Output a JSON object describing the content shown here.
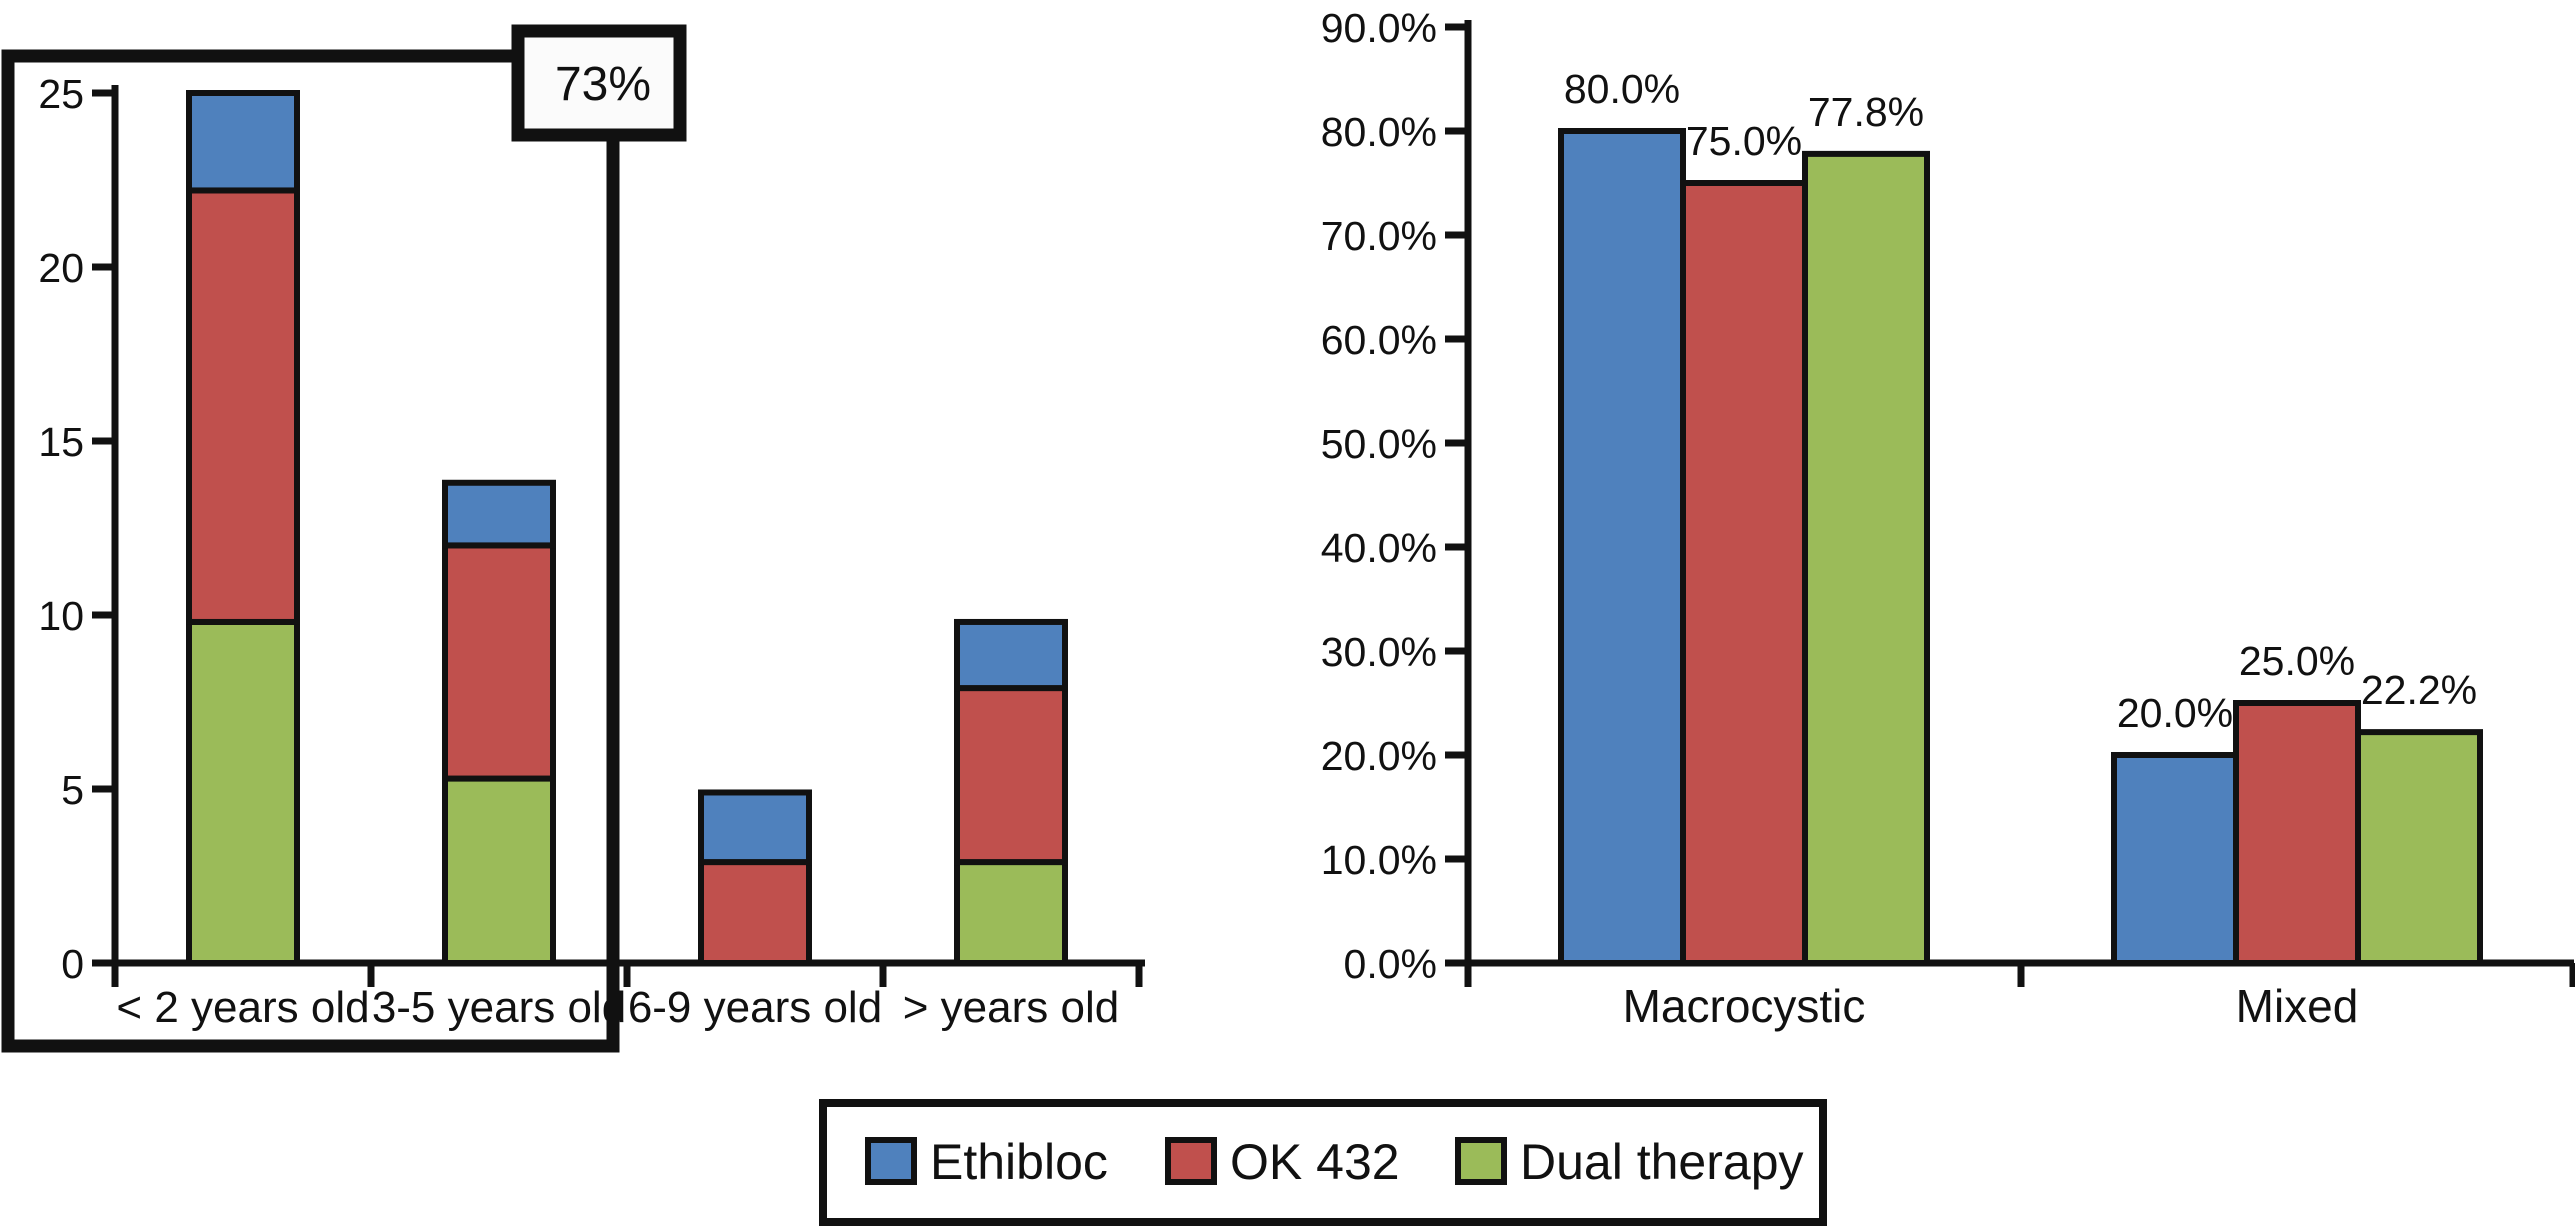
{
  "figure": {
    "description": "Two-panel bar chart comparing sclerotherapy treatments (Ethibloc, OK 432, dual therapy) by patient age group and by lesion type",
    "background": "#FFFFFF"
  },
  "colors": {
    "ethibloc": "#4F81BD",
    "ok432": "#C0504D",
    "dual_therapy": "#9BBB59",
    "stroke": "#111111",
    "annotation_fill": "#FBFBFB"
  },
  "legend": {
    "position": "bottom-center",
    "items": [
      {
        "label": "Ethibloc",
        "color": "#4F81BD"
      },
      {
        "label": "OK 432",
        "color": "#C0504D"
      },
      {
        "label": "Dual therapy",
        "color": "#9BBB59"
      }
    ]
  },
  "chart_data": [
    {
      "type": "bar",
      "variant": "stacked",
      "title": "",
      "xlabel": "",
      "ylabel": "",
      "categories": [
        "< 2 years old",
        "3-5 years old",
        "6-9 years old",
        "> years old"
      ],
      "series": [
        {
          "name": "Ethibloc",
          "color": "#4F81BD",
          "values": [
            2.8,
            1.8,
            2.0,
            1.9
          ]
        },
        {
          "name": "OK 432",
          "color": "#C0504D",
          "values": [
            12.4,
            6.7,
            2.9,
            5.0
          ]
        },
        {
          "name": "Dual therapy",
          "color": "#9BBB59",
          "values": [
            9.8,
            5.3,
            0,
            2.9
          ]
        }
      ],
      "stack_order_bottom_to_top": [
        "Dual therapy",
        "OK 432",
        "Ethibloc"
      ],
      "stack_totals": [
        25.0,
        13.8,
        4.9,
        9.8
      ],
      "ylim": [
        0,
        25
      ],
      "ytick_labels": [
        "0",
        "5",
        "10",
        "15",
        "20",
        "25"
      ],
      "grid": false,
      "legend_position": "shared-bottom",
      "annotation": {
        "label": "73%",
        "note": "thick black box highlights the < 2 years old and 3-5 years old groups"
      }
    },
    {
      "type": "bar",
      "variant": "grouped",
      "title": "",
      "xlabel": "",
      "ylabel": "",
      "categories": [
        "Macrocystic",
        "Mixed"
      ],
      "series": [
        {
          "name": "Ethibloc",
          "color": "#4F81BD",
          "values": [
            80.0,
            20.0
          ],
          "labels": [
            "80.0%",
            "20.0%"
          ]
        },
        {
          "name": "OK 432",
          "color": "#C0504D",
          "values": [
            75.0,
            25.0
          ],
          "labels": [
            "75.0%",
            "25.0%"
          ]
        },
        {
          "name": "Dual therapy",
          "color": "#9BBB59",
          "values": [
            77.8,
            22.2
          ],
          "labels": [
            "77.8%",
            "22.2%"
          ]
        }
      ],
      "ylim": [
        0,
        90
      ],
      "ytick_labels": [
        "0.0%",
        "10.0%",
        "20.0%",
        "30.0%",
        "40.0%",
        "50.0%",
        "60.0%",
        "70.0%",
        "80.0%",
        "90.0%"
      ],
      "grid": false,
      "legend_position": "shared-bottom"
    }
  ]
}
